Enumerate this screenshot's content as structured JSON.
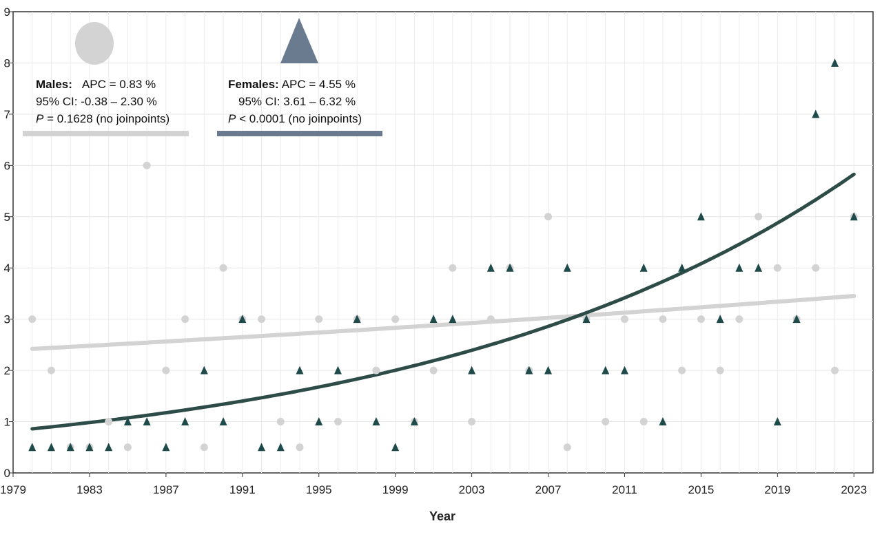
{
  "chart_data": {
    "type": "scatter",
    "xlabel": "Year",
    "ylabel": "",
    "xlim": [
      1979,
      2024
    ],
    "ylim": [
      0,
      9
    ],
    "x_ticks": [
      1979,
      1983,
      1987,
      1991,
      1995,
      1999,
      2003,
      2007,
      2011,
      2015,
      2019,
      2023
    ],
    "y_ticks": [
      0,
      1,
      2,
      3,
      4,
      5,
      6,
      7,
      8,
      9
    ],
    "grid": true,
    "legend_position": "top-left",
    "series": [
      {
        "name": "Males",
        "marker": "circle",
        "color": "#d3d3d3",
        "line_color": "#d3d3d3",
        "points": [
          [
            1980,
            3
          ],
          [
            1981,
            2
          ],
          [
            1982,
            0.5
          ],
          [
            1983,
            0.5
          ],
          [
            1984,
            1
          ],
          [
            1985,
            0.5
          ],
          [
            1986,
            6
          ],
          [
            1987,
            2
          ],
          [
            1988,
            3
          ],
          [
            1989,
            0.5
          ],
          [
            1990,
            4
          ],
          [
            1991,
            3
          ],
          [
            1992,
            3
          ],
          [
            1993,
            1
          ],
          [
            1994,
            0.5
          ],
          [
            1995,
            3
          ],
          [
            1996,
            1
          ],
          [
            1997,
            3
          ],
          [
            1998,
            2
          ],
          [
            1999,
            3
          ],
          [
            2000,
            1
          ],
          [
            2001,
            2
          ],
          [
            2002,
            4
          ],
          [
            2003,
            1
          ],
          [
            2004,
            3
          ],
          [
            2005,
            4
          ],
          [
            2006,
            2
          ],
          [
            2007,
            5
          ],
          [
            2008,
            0.5
          ],
          [
            2009,
            3
          ],
          [
            2010,
            1
          ],
          [
            2011,
            3
          ],
          [
            2012,
            1
          ],
          [
            2013,
            3
          ],
          [
            2014,
            2
          ],
          [
            2015,
            3
          ],
          [
            2016,
            2
          ],
          [
            2017,
            3
          ],
          [
            2018,
            5
          ],
          [
            2019,
            4
          ],
          [
            2020,
            3
          ],
          [
            2021,
            4
          ],
          [
            2022,
            2
          ],
          [
            2023,
            5
          ]
        ],
        "trend": {
          "apc_pct": 0.83,
          "start_value": 2.42,
          "start_year": 1980,
          "end_year": 2023
        }
      },
      {
        "name": "Females",
        "marker": "triangle",
        "color": "#1f4a4a",
        "line_color": "#2d4b47",
        "points": [
          [
            1980,
            0.5
          ],
          [
            1981,
            0.5
          ],
          [
            1982,
            0.5
          ],
          [
            1983,
            0.5
          ],
          [
            1984,
            0.5
          ],
          [
            1985,
            1
          ],
          [
            1986,
            1
          ],
          [
            1987,
            0.5
          ],
          [
            1988,
            1
          ],
          [
            1989,
            2
          ],
          [
            1990,
            1
          ],
          [
            1991,
            3
          ],
          [
            1992,
            0.5
          ],
          [
            1993,
            0.5
          ],
          [
            1994,
            2
          ],
          [
            1995,
            1
          ],
          [
            1996,
            2
          ],
          [
            1997,
            3
          ],
          [
            1998,
            1
          ],
          [
            1999,
            0.5
          ],
          [
            2000,
            1
          ],
          [
            2001,
            3
          ],
          [
            2002,
            3
          ],
          [
            2003,
            2
          ],
          [
            2004,
            4
          ],
          [
            2005,
            4
          ],
          [
            2006,
            2
          ],
          [
            2007,
            2
          ],
          [
            2008,
            4
          ],
          [
            2009,
            3
          ],
          [
            2010,
            2
          ],
          [
            2011,
            2
          ],
          [
            2012,
            4
          ],
          [
            2013,
            1
          ],
          [
            2014,
            4
          ],
          [
            2015,
            5
          ],
          [
            2016,
            3
          ],
          [
            2017,
            4
          ],
          [
            2018,
            4
          ],
          [
            2019,
            1
          ],
          [
            2020,
            3
          ],
          [
            2021,
            7
          ],
          [
            2022,
            8
          ],
          [
            2023,
            5
          ]
        ],
        "trend": {
          "apc_pct": 4.55,
          "start_value": 0.86,
          "start_year": 1980,
          "end_year": 2023
        }
      }
    ]
  },
  "legend": {
    "males": {
      "label": "Males:",
      "apc": "APC = 0.83 %",
      "ci": "95% CI: -0.38 – 2.30 %",
      "p_letter": "P",
      "p_value": " = 0.1628 (no joinpoints)",
      "symbol_color": "#d3d3d3",
      "line_color": "#d3d3d3"
    },
    "females": {
      "label": "Females:",
      "apc": "APC = 4.55 %",
      "ci": "95% CI: 3.61 – 6.32 %",
      "p_letter": "P",
      "p_value": " < 0.0001 (no joinpoints)",
      "symbol_color": "#6b7b8f",
      "line_color": "#6b7b8f"
    }
  }
}
